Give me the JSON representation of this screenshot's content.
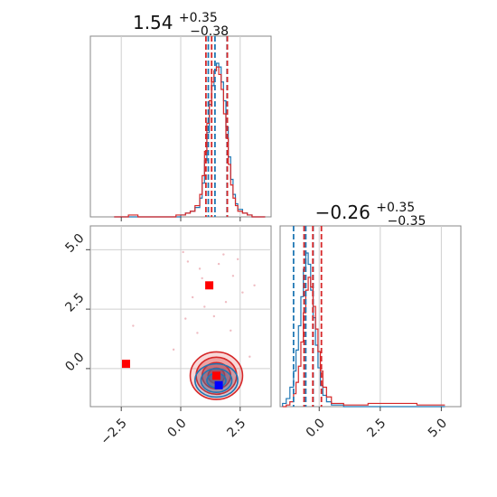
{
  "chart_data": {
    "type": "corner",
    "colors": {
      "series_a": "#1f77b4",
      "series_b": "#d62728",
      "marker": "#ff0000",
      "marker_alt": "#0000ff"
    },
    "grid": true,
    "panels": [
      {
        "id": "p1-marginal",
        "type": "histogram",
        "title": {
          "median": "1.54",
          "plus": "+0.35",
          "minus": "−0.38"
        },
        "xlim": [
          -3.8,
          3.8
        ],
        "quantile_lines": {
          "series_a": [
            1.16,
            1.44,
            1.95
          ],
          "series_b": [
            1.06,
            1.3,
            1.96
          ]
        },
        "series": [
          {
            "color": "series_a",
            "x": [
              -2.8,
              -2.2,
              -1.8,
              -1.4,
              -1.0,
              -0.6,
              -0.2,
              0.0,
              0.2,
              0.4,
              0.6,
              0.8,
              0.9,
              1.0,
              1.1,
              1.2,
              1.3,
              1.4,
              1.5,
              1.6,
              1.7,
              1.8,
              1.9,
              2.0,
              2.1,
              2.2,
              2.3,
              2.4,
              2.6,
              2.8,
              3.0,
              3.4
            ],
            "y": [
              0,
              0,
              0,
              0,
              0,
              0,
              0,
              0.01,
              0.02,
              0.03,
              0.05,
              0.1,
              0.18,
              0.3,
              0.45,
              0.6,
              0.7,
              0.78,
              0.82,
              0.8,
              0.72,
              0.62,
              0.48,
              0.32,
              0.2,
              0.12,
              0.07,
              0.04,
              0.02,
              0.01,
              0,
              0
            ]
          },
          {
            "color": "series_b",
            "x": [
              -2.8,
              -2.2,
              -1.8,
              -1.4,
              -1.0,
              -0.6,
              -0.2,
              0.0,
              0.2,
              0.4,
              0.6,
              0.8,
              0.9,
              1.0,
              1.1,
              1.2,
              1.3,
              1.4,
              1.5,
              1.6,
              1.7,
              1.8,
              1.9,
              2.0,
              2.1,
              2.2,
              2.3,
              2.4,
              2.6,
              2.8,
              3.0,
              3.4
            ],
            "y": [
              0,
              0.01,
              0,
              0,
              0,
              0,
              0.01,
              0.01,
              0.02,
              0.03,
              0.06,
              0.12,
              0.22,
              0.35,
              0.5,
              0.62,
              0.72,
              0.78,
              0.8,
              0.76,
              0.68,
              0.55,
              0.42,
              0.28,
              0.17,
              0.1,
              0.06,
              0.03,
              0.02,
              0.01,
              0,
              0
            ]
          }
        ]
      },
      {
        "id": "p2-joint",
        "type": "scatter-contour",
        "xlim": [
          -3.8,
          3.8
        ],
        "ylim": [
          -1.6,
          6.0
        ],
        "xticks": [
          "−2.5",
          "0.0",
          "2.5"
        ],
        "xtick_values": [
          -2.5,
          0.0,
          2.5
        ],
        "yticks": [
          "0.0",
          "2.5",
          "5.0"
        ],
        "ytick_values": [
          0.0,
          2.5,
          5.0
        ],
        "markers": [
          {
            "x": -2.3,
            "y": 0.2,
            "color": "marker"
          },
          {
            "x": 1.2,
            "y": 3.5,
            "color": "marker"
          },
          {
            "x": 1.5,
            "y": -0.3,
            "color": "marker"
          },
          {
            "x": 1.6,
            "y": -0.7,
            "color": "marker_alt"
          }
        ],
        "contours": [
          {
            "color": "series_b",
            "cx": 1.5,
            "cy": -0.3,
            "rx": [
              1.1,
              0.85,
              0.6,
              0.35
            ],
            "ry": [
              1.0,
              0.78,
              0.55,
              0.32
            ]
          },
          {
            "color": "series_a",
            "cx": 1.5,
            "cy": -0.5,
            "rx": [
              0.9,
              0.65,
              0.4
            ],
            "ry": [
              0.7,
              0.5,
              0.3
            ]
          }
        ],
        "scatter_points": [
          [
            0.3,
            4.5
          ],
          [
            0.8,
            4.2
          ],
          [
            1.8,
            4.8
          ],
          [
            2.2,
            3.9
          ],
          [
            0.5,
            3.0
          ],
          [
            1.0,
            2.6
          ],
          [
            1.9,
            2.8
          ],
          [
            2.6,
            3.2
          ],
          [
            0.2,
            2.1
          ],
          [
            1.4,
            2.2
          ],
          [
            2.1,
            1.6
          ],
          [
            0.7,
            1.5
          ],
          [
            3.1,
            3.5
          ],
          [
            -0.3,
            0.8
          ],
          [
            2.9,
            0.5
          ],
          [
            0.1,
            4.9
          ],
          [
            1.6,
            4.4
          ],
          [
            -2.0,
            1.8
          ],
          [
            2.4,
            4.6
          ],
          [
            0.9,
            3.8
          ]
        ]
      },
      {
        "id": "p3-marginal",
        "type": "histogram",
        "title": {
          "median": "−0.26",
          "plus": "+0.35",
          "minus": "−0.35"
        },
        "xlim": [
          -1.6,
          5.8
        ],
        "xticks": [
          "0.0",
          "2.5",
          "5.0"
        ],
        "xtick_values": [
          0.0,
          2.5,
          5.0
        ],
        "quantile_lines": {
          "series_a": [
            -1.05,
            -0.55,
            -0.25
          ],
          "series_b": [
            -0.62,
            -0.26,
            0.09
          ]
        },
        "series": [
          {
            "color": "series_a",
            "x": [
              -1.5,
              -1.35,
              -1.2,
              -1.05,
              -0.95,
              -0.85,
              -0.75,
              -0.65,
              -0.55,
              -0.45,
              -0.35,
              -0.25,
              -0.15,
              -0.05,
              0.05,
              0.15,
              0.3,
              0.5,
              1.0,
              2.0,
              3.0,
              4.0,
              5.0
            ],
            "y": [
              0.02,
              0.05,
              0.12,
              0.22,
              0.35,
              0.5,
              0.68,
              0.85,
              0.95,
              0.88,
              0.72,
              0.55,
              0.38,
              0.24,
              0.13,
              0.07,
              0.03,
              0.01,
              0,
              0,
              0,
              0,
              0
            ]
          },
          {
            "color": "series_b",
            "x": [
              -1.5,
              -1.35,
              -1.2,
              -1.05,
              -0.95,
              -0.85,
              -0.75,
              -0.65,
              -0.55,
              -0.45,
              -0.35,
              -0.25,
              -0.15,
              -0.05,
              0.05,
              0.15,
              0.3,
              0.5,
              1.0,
              2.0,
              3.0,
              4.0,
              5.0
            ],
            "y": [
              0.0,
              0.01,
              0.03,
              0.08,
              0.15,
              0.25,
              0.4,
              0.58,
              0.72,
              0.8,
              0.74,
              0.62,
              0.48,
              0.34,
              0.22,
              0.12,
              0.06,
              0.02,
              0.01,
              0.02,
              0.02,
              0.01,
              0.01
            ]
          }
        ]
      }
    ]
  }
}
